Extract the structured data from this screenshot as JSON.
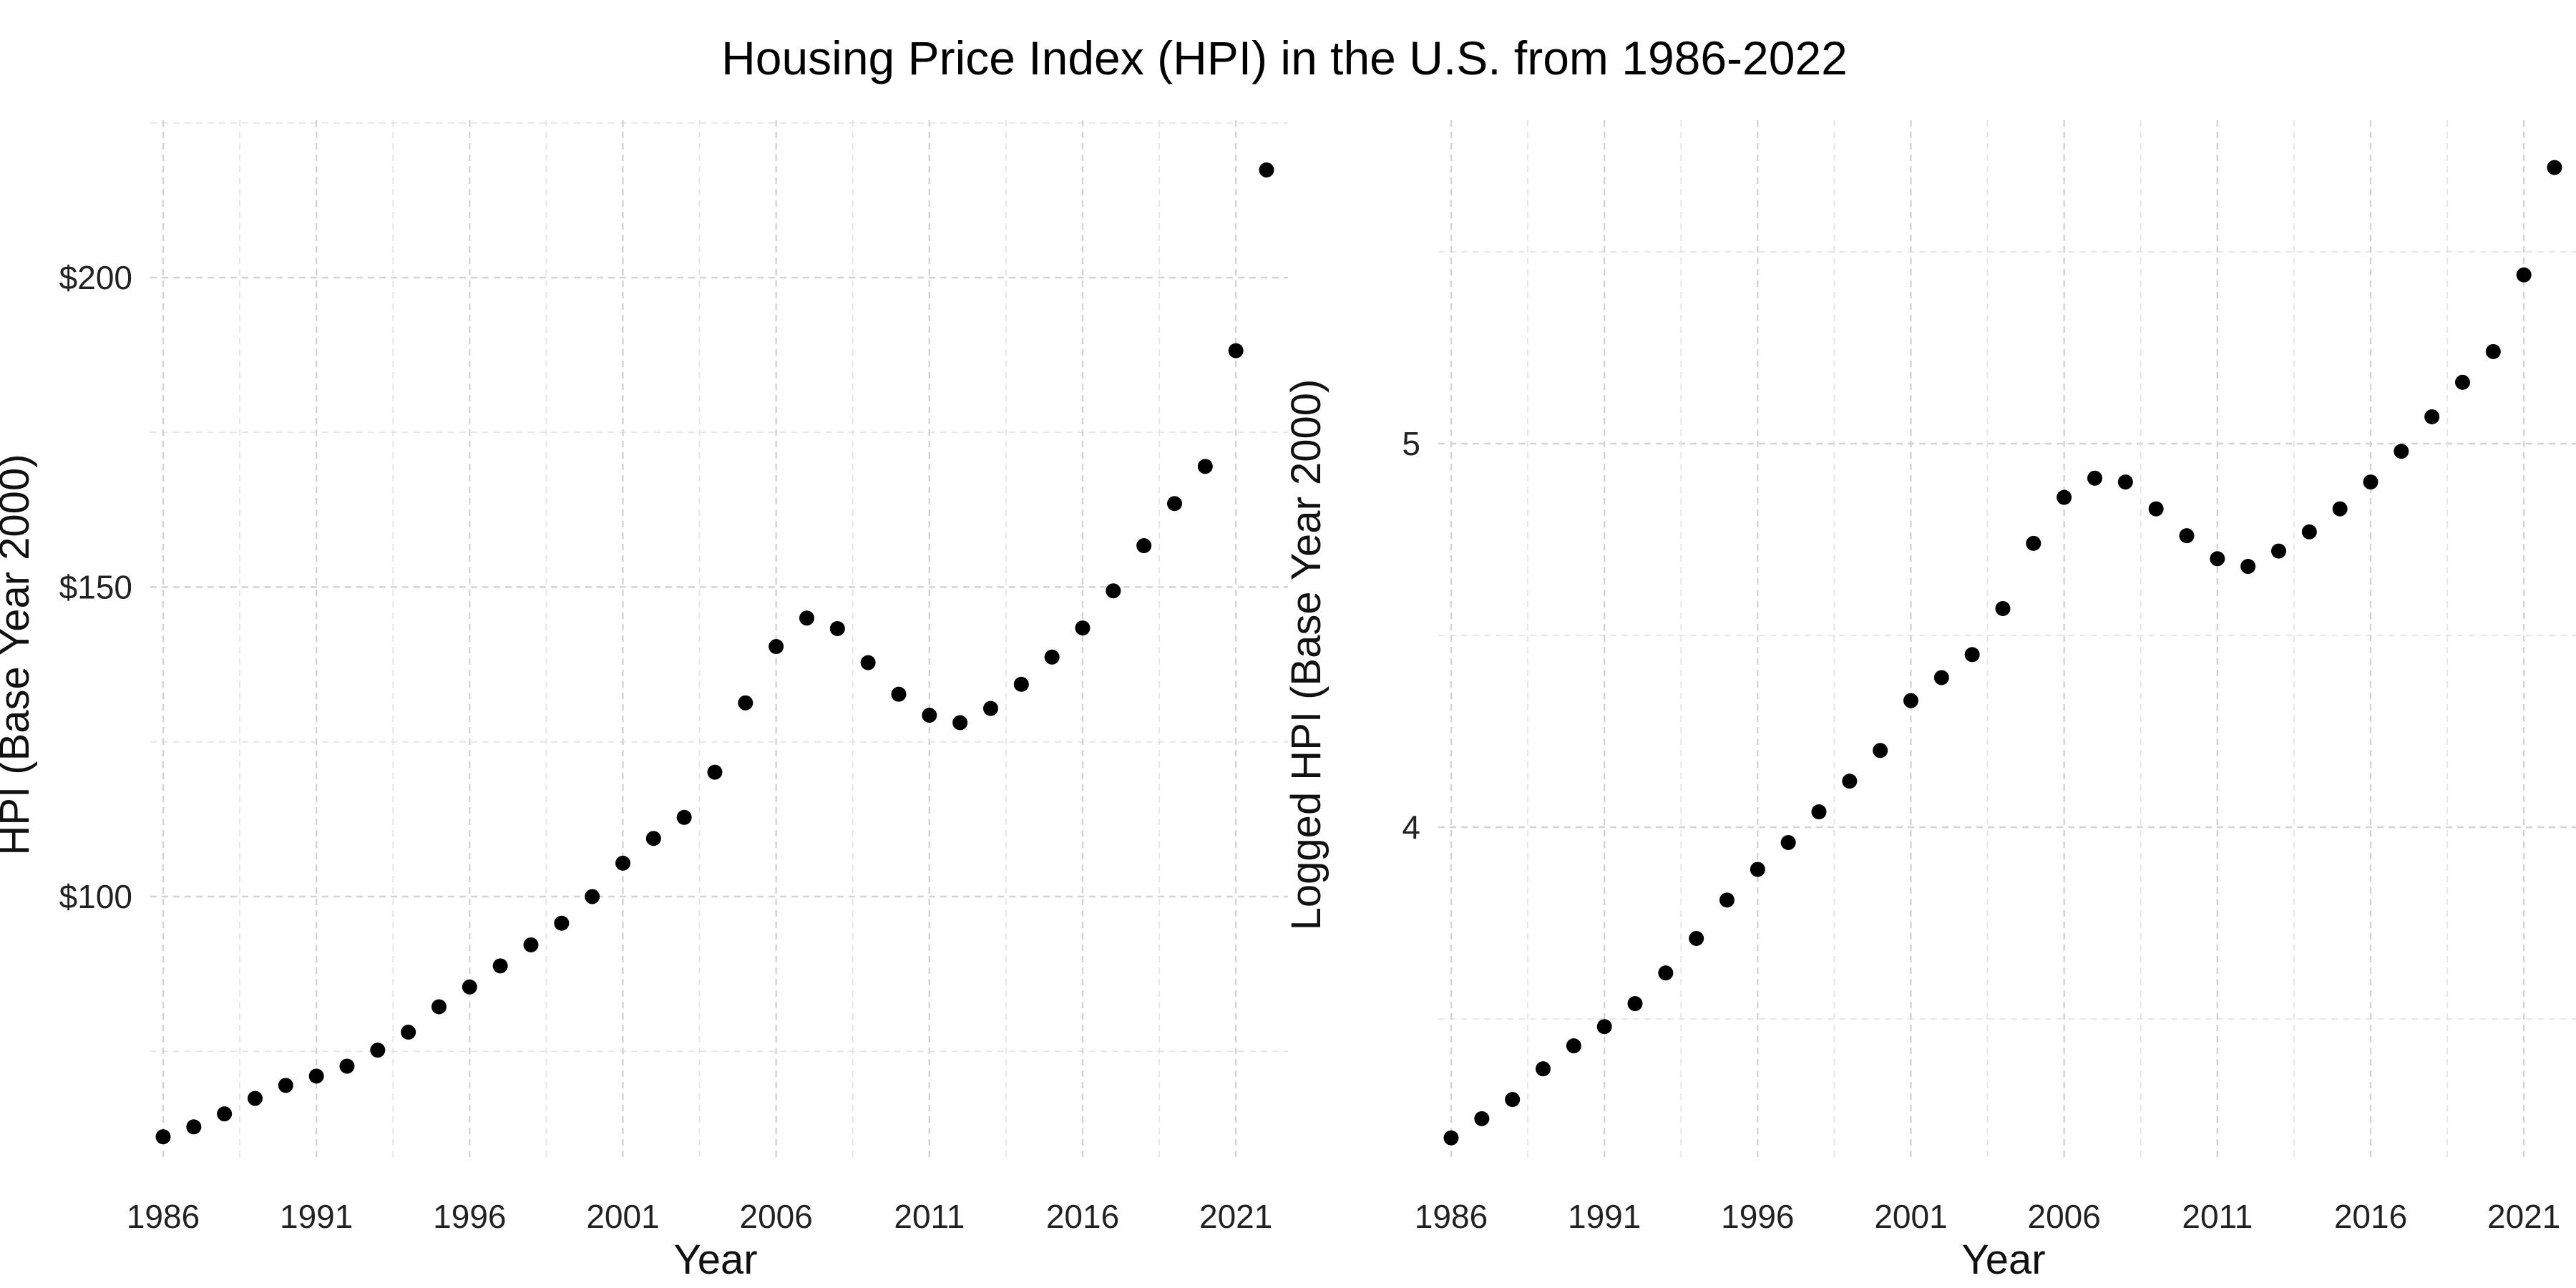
{
  "figure": {
    "title": "Housing Price Index (HPI) in the U.S. from 1986-2022"
  },
  "chart_data": [
    {
      "type": "scatter",
      "title": "",
      "xlabel": "Year",
      "ylabel": "HPI (Base Year 2000)",
      "xlim": [
        1986,
        2022
      ],
      "ylim": [
        55,
        225
      ],
      "x_ticks": [
        1986,
        1991,
        1996,
        2001,
        2006,
        2011,
        2016,
        2021
      ],
      "y_ticks": [
        100,
        150,
        200
      ],
      "y_tick_labels": [
        "$100",
        "$150",
        "$200"
      ],
      "y_minor_ticks": [
        75,
        125,
        175,
        225
      ],
      "grid": true,
      "series": [
        {
          "x": [
            1986,
            1987,
            1988,
            1989,
            1990,
            1991,
            1992,
            1993,
            1994,
            1995,
            1996,
            1997,
            1998,
            1999,
            2000,
            2001,
            2002,
            2003,
            2004,
            2005,
            2006,
            2007,
            2008,
            2009,
            2010,
            2011,
            2012,
            2013,
            2014,
            2015,
            2016,
            2017,
            2018,
            2019,
            2020,
            2021,
            2022
          ],
          "values": [
            61.2,
            62.8,
            64.9,
            67.4,
            69.5,
            71.0,
            72.6,
            75.2,
            78.1,
            82.2,
            85.4,
            88.8,
            92.2,
            95.7,
            100.0,
            105.4,
            109.4,
            112.8,
            120.1,
            131.3,
            140.4,
            145.0,
            143.3,
            137.8,
            132.7,
            129.3,
            128.1,
            130.4,
            134.3,
            138.7,
            143.4,
            149.4,
            156.7,
            163.5,
            169.5,
            188.2,
            217.4
          ]
        }
      ]
    },
    {
      "type": "scatter",
      "title": "",
      "xlabel": "Year",
      "ylabel": "Logged HPI (Base Year 2000)",
      "xlim": [
        1986,
        2022
      ],
      "ylim": [
        3.18,
        5.62
      ],
      "x_ticks": [
        1986,
        1991,
        1996,
        2001,
        2006,
        2011,
        2016,
        2021
      ],
      "y_ticks": [
        4,
        5
      ],
      "y_tick_labels": [
        "4",
        "5"
      ],
      "y_minor_ticks": [
        3.5,
        4.5,
        5.5
      ],
      "grid": true,
      "series": [
        {
          "x": [
            1986,
            1987,
            1988,
            1989,
            1990,
            1991,
            1992,
            1993,
            1994,
            1995,
            1996,
            1997,
            1998,
            1999,
            2000,
            2001,
            2002,
            2003,
            2004,
            2005,
            2006,
            2007,
            2008,
            2009,
            2010,
            2011,
            2012,
            2013,
            2014,
            2015,
            2016,
            2017,
            2018,
            2019,
            2020,
            2021,
            2022
          ],
          "values": [
            3.19,
            3.24,
            3.29,
            3.37,
            3.43,
            3.48,
            3.54,
            3.62,
            3.71,
            3.81,
            3.89,
            3.96,
            4.04,
            4.12,
            4.2,
            4.33,
            4.39,
            4.45,
            4.57,
            4.74,
            4.86,
            4.91,
            4.9,
            4.83,
            4.76,
            4.7,
            4.68,
            4.72,
            4.77,
            4.83,
            4.9,
            4.98,
            5.07,
            5.16,
            5.24,
            5.44,
            5.72
          ]
        }
      ]
    }
  ]
}
